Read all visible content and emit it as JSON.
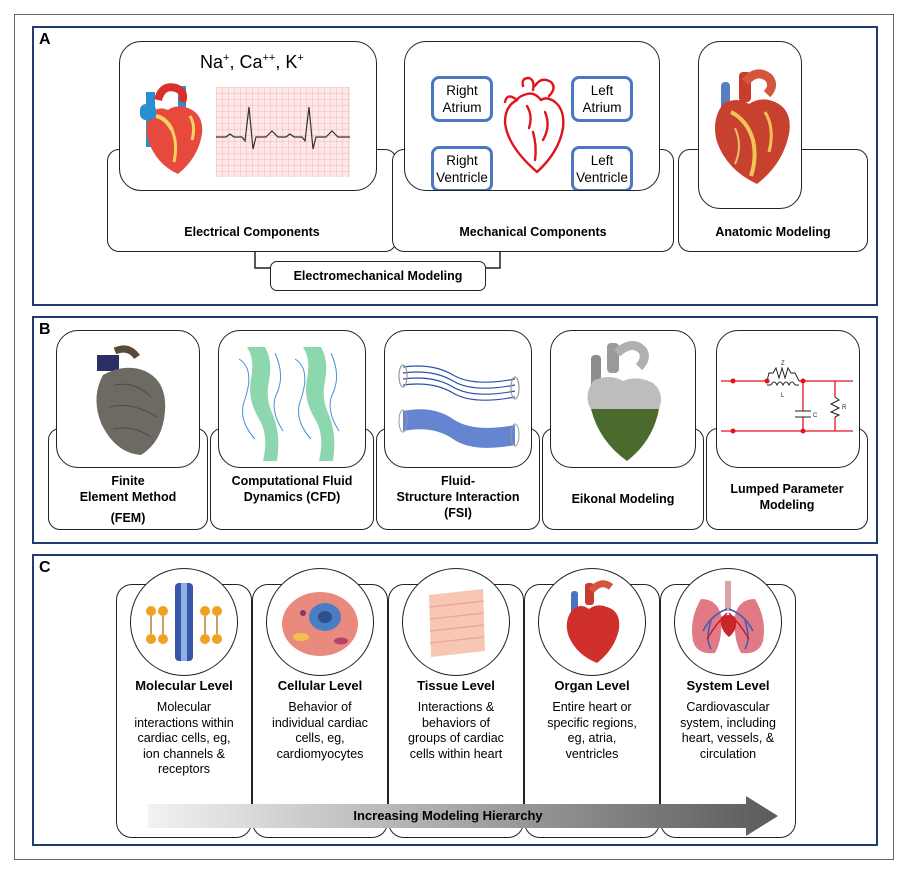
{
  "panel_a": {
    "label": "A",
    "ions": {
      "na": "Na",
      "na_sup": "+",
      "ca": "Ca",
      "ca_sup": "++",
      "k": "K",
      "k_sup": "+"
    },
    "chambers": {
      "right_atrium": [
        "Right",
        "Atrium"
      ],
      "left_atrium": [
        "Left",
        "Atrium"
      ],
      "right_ventricle": [
        "Right",
        "Ventricle"
      ],
      "left_ventricle": [
        "Left",
        "Ventricle"
      ]
    },
    "electrical_label": "Electrical Components",
    "mechanical_label": "Mechanical Components",
    "anatomic_label": "Anatomic Modeling",
    "electromechanical_label": "Electromechanical Modeling"
  },
  "panel_b": {
    "label": "B",
    "methods": [
      {
        "lines": [
          "Finite",
          "Element Method",
          "(FEM)"
        ]
      },
      {
        "lines": [
          "Computational Fluid",
          "Dynamics (CFD)"
        ]
      },
      {
        "lines": [
          "Fluid-",
          "Structure Interaction",
          "(FSI)"
        ]
      },
      {
        "lines": [
          "Eikonal Modeling"
        ]
      },
      {
        "lines": [
          "Lumped Parameter",
          "Modeling"
        ]
      }
    ],
    "circuit_labels": {
      "z": "Z",
      "l": "L",
      "c": "C",
      "r": "R"
    }
  },
  "panel_c": {
    "label": "C",
    "levels": [
      {
        "title": "Molecular Level",
        "desc": [
          "Molecular",
          "interactions within",
          "cardiac cells, eg,",
          "ion channels &",
          "receptors"
        ]
      },
      {
        "title": "Cellular Level",
        "desc": [
          "Behavior of",
          "individual cardiac",
          "cells, eg,",
          "cardiomyocytes"
        ]
      },
      {
        "title": "Tissue Level",
        "desc": [
          "Interactions &",
          "behaviors of",
          "groups of cardiac",
          "cells within heart"
        ]
      },
      {
        "title": "Organ Level",
        "desc": [
          "Entire heart or",
          "specific regions,",
          "eg, atria,",
          "ventricles"
        ]
      },
      {
        "title": "System Level",
        "desc": [
          "Cardiovascular",
          "system, including",
          "heart, vessels, &",
          "circulation"
        ]
      }
    ],
    "arrow_label": "Increasing Modeling Hierarchy"
  },
  "colors": {
    "panel_border": "#1f3b6f",
    "chamber_border": "#4a78c2",
    "heart_outline": "#e0141e",
    "circuit": "#e0141e"
  }
}
